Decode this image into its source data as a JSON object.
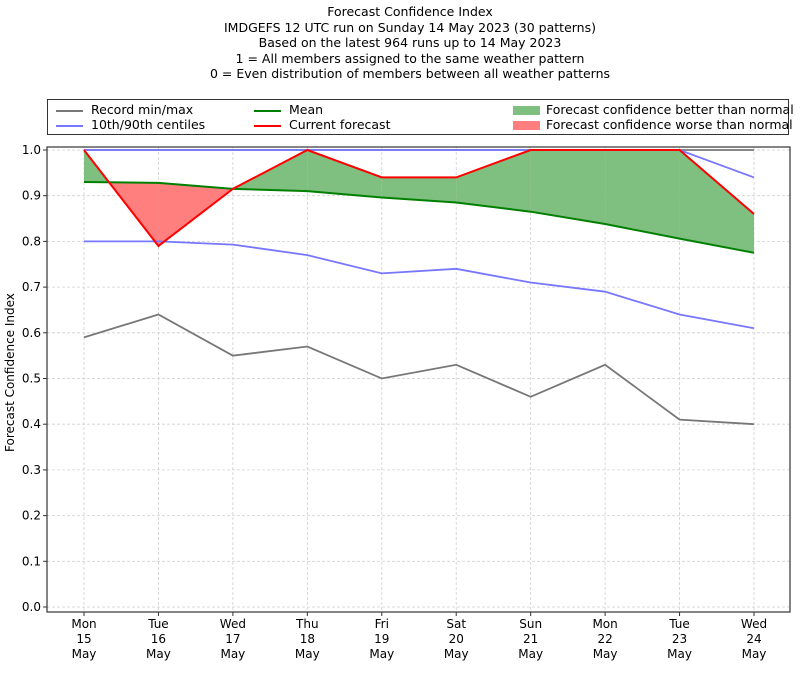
{
  "chart_data": {
    "type": "line",
    "title_lines": [
      "Forecast Confidence Index",
      "IMDGEFS 12 UTC run on Sunday 14 May 2023 (30 patterns)",
      "Based on the latest 964 runs up to 14 May 2023",
      "1 = All members assigned to the same weather pattern",
      "0 = Even distribution of members between all weather patterns"
    ],
    "xlabel": "",
    "ylabel": "Forecast Confidence Index",
    "ylim": [
      0.0,
      1.0
    ],
    "yticks": [
      "0.0",
      "0.1",
      "0.2",
      "0.3",
      "0.4",
      "0.5",
      "0.6",
      "0.7",
      "0.8",
      "0.9",
      "1.0"
    ],
    "ytick_values": [
      0.0,
      0.1,
      0.2,
      0.3,
      0.4,
      0.5,
      0.6,
      0.7,
      0.8,
      0.9,
      1.0
    ],
    "categories": [
      [
        "Mon",
        "15",
        "May"
      ],
      [
        "Tue",
        "16",
        "May"
      ],
      [
        "Wed",
        "17",
        "May"
      ],
      [
        "Thu",
        "18",
        "May"
      ],
      [
        "Fri",
        "19",
        "May"
      ],
      [
        "Sat",
        "20",
        "May"
      ],
      [
        "Sun",
        "21",
        "May"
      ],
      [
        "Mon",
        "22",
        "May"
      ],
      [
        "Tue",
        "23",
        "May"
      ],
      [
        "Wed",
        "24",
        "May"
      ]
    ],
    "grid": true,
    "legend_position": "top",
    "series": [
      {
        "name": "Record max",
        "legend": "Record min/max",
        "color": "#777777",
        "values": [
          1.0,
          1.0,
          1.0,
          1.0,
          1.0,
          1.0,
          1.0,
          1.0,
          1.0,
          1.0
        ]
      },
      {
        "name": "Record min",
        "color": "#777777",
        "values": [
          0.59,
          0.64,
          0.55,
          0.57,
          0.5,
          0.53,
          0.46,
          0.53,
          0.41,
          0.4
        ]
      },
      {
        "name": "90th centile",
        "legend": "10th/90th centiles",
        "color": "#7777ff",
        "values": [
          1.0,
          1.0,
          1.0,
          1.0,
          1.0,
          1.0,
          1.0,
          1.0,
          1.0,
          0.94
        ]
      },
      {
        "name": "10th centile",
        "color": "#7777ff",
        "values": [
          0.8,
          0.8,
          0.793,
          0.77,
          0.73,
          0.74,
          0.71,
          0.69,
          0.64,
          0.61
        ]
      },
      {
        "name": "Mean",
        "legend": "Mean",
        "color": "#008000",
        "values": [
          0.93,
          0.928,
          0.915,
          0.91,
          0.896,
          0.885,
          0.865,
          0.838,
          0.806,
          0.775
        ]
      },
      {
        "name": "Current forecast",
        "legend": "Current forecast",
        "color": "#ff0000",
        "values": [
          1.0,
          0.79,
          0.915,
          1.0,
          0.94,
          0.94,
          1.0,
          1.0,
          1.0,
          0.86
        ]
      }
    ],
    "fills": [
      {
        "name": "Forecast confidence better than normal",
        "color": "#7fbf7f",
        "condition": "current > mean"
      },
      {
        "name": "Forecast confidence worse than normal",
        "color": "#ff7f7f",
        "condition": "current < mean"
      }
    ]
  },
  "legend": {
    "record": "Record min/max",
    "centiles": "10th/90th centiles",
    "mean": "Mean",
    "current": "Current forecast",
    "better": "Forecast confidence better than normal",
    "worse": "Forecast confidence worse than normal"
  }
}
